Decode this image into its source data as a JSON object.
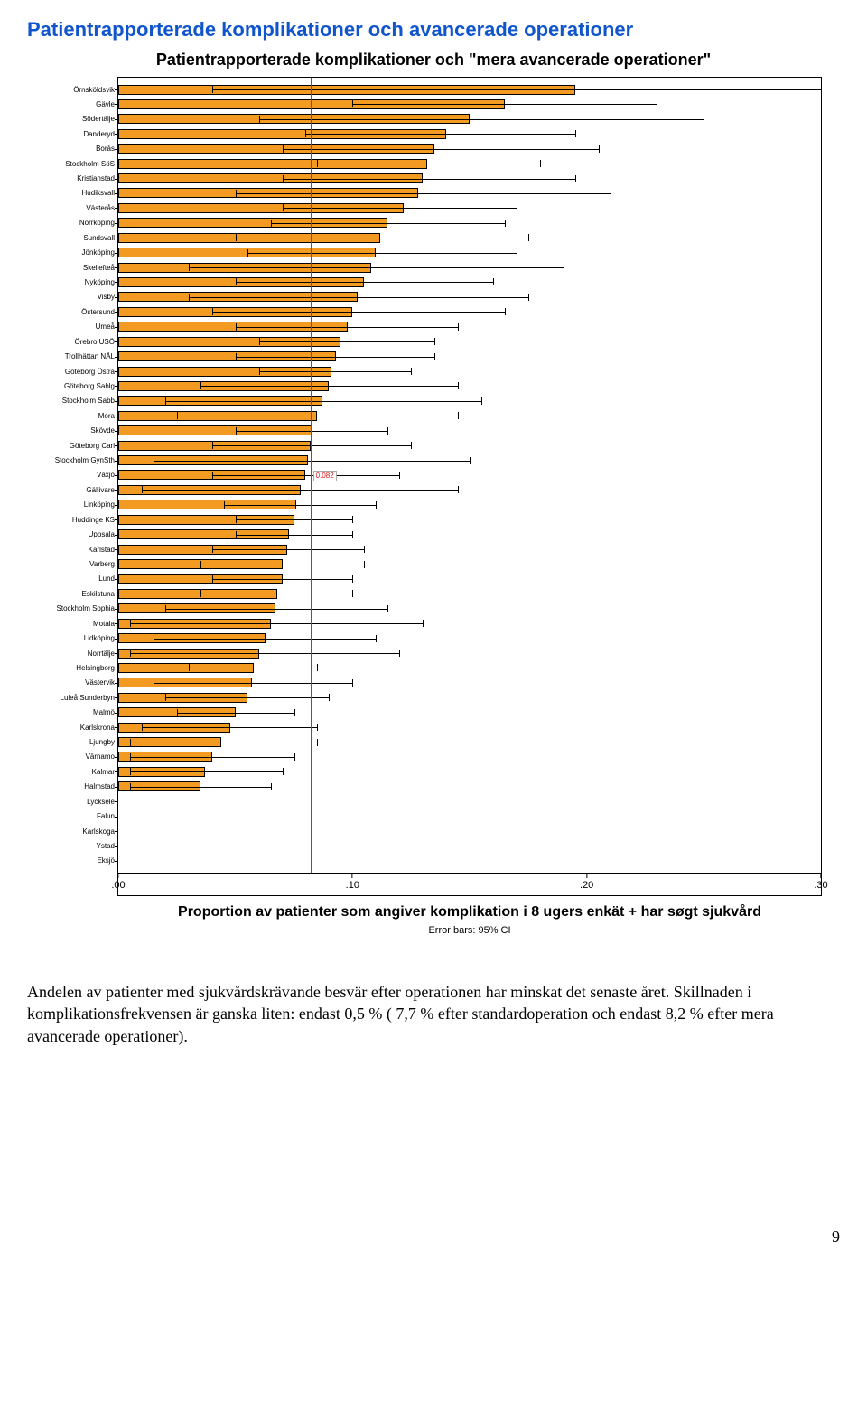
{
  "section_title": "Patientrapporterade komplikationer och avancerade operationer",
  "chart": {
    "type": "bar-horizontal",
    "title": "Patientrapporterade komplikationer och \"mera avancerade operationer\"",
    "x_title": "Proportion av patienter som angiver komplikation i 8 ugers enkät + har søgt sjukvård",
    "error_caption": "Error bars: 95% CI",
    "x_min": 0.0,
    "x_max": 0.3,
    "x_ticks": [
      ".00",
      ".10",
      ".20",
      ".30"
    ],
    "bar_color": "#f29a22",
    "bar_border": "#000000",
    "ref_line": {
      "value": 0.082,
      "label": "0.082",
      "color": "#e02020"
    },
    "background": "#ffffff",
    "rows": [
      {
        "label": "Örnsköldsvik",
        "value": 0.195,
        "lo": 0.04,
        "hi": 0.3
      },
      {
        "label": "Gävle",
        "value": 0.165,
        "lo": 0.1,
        "hi": 0.23
      },
      {
        "label": "Södertälje",
        "value": 0.15,
        "lo": 0.06,
        "hi": 0.25
      },
      {
        "label": "Danderyd",
        "value": 0.14,
        "lo": 0.08,
        "hi": 0.195
      },
      {
        "label": "Borås",
        "value": 0.135,
        "lo": 0.07,
        "hi": 0.205
      },
      {
        "label": "Stockholm SöS",
        "value": 0.132,
        "lo": 0.085,
        "hi": 0.18
      },
      {
        "label": "Kristianstad",
        "value": 0.13,
        "lo": 0.07,
        "hi": 0.195
      },
      {
        "label": "Hudiksvall",
        "value": 0.128,
        "lo": 0.05,
        "hi": 0.21
      },
      {
        "label": "Västerås",
        "value": 0.122,
        "lo": 0.07,
        "hi": 0.17
      },
      {
        "label": "Norrköping",
        "value": 0.115,
        "lo": 0.065,
        "hi": 0.165
      },
      {
        "label": "Sundsvall",
        "value": 0.112,
        "lo": 0.05,
        "hi": 0.175
      },
      {
        "label": "Jönköping",
        "value": 0.11,
        "lo": 0.055,
        "hi": 0.17
      },
      {
        "label": "Skellefteå",
        "value": 0.108,
        "lo": 0.03,
        "hi": 0.19
      },
      {
        "label": "Nyköping",
        "value": 0.105,
        "lo": 0.05,
        "hi": 0.16
      },
      {
        "label": "Visby",
        "value": 0.102,
        "lo": 0.03,
        "hi": 0.175
      },
      {
        "label": "Östersund",
        "value": 0.1,
        "lo": 0.04,
        "hi": 0.165
      },
      {
        "label": "Umeå",
        "value": 0.098,
        "lo": 0.05,
        "hi": 0.145
      },
      {
        "label": "Örebro USÖ",
        "value": 0.095,
        "lo": 0.06,
        "hi": 0.135
      },
      {
        "label": "Trollhättan NÄL",
        "value": 0.093,
        "lo": 0.05,
        "hi": 0.135
      },
      {
        "label": "Göteborg Östra",
        "value": 0.091,
        "lo": 0.06,
        "hi": 0.125
      },
      {
        "label": "Göteborg Sahlg",
        "value": 0.09,
        "lo": 0.035,
        "hi": 0.145
      },
      {
        "label": "Stockholm Sabb",
        "value": 0.087,
        "lo": 0.02,
        "hi": 0.155
      },
      {
        "label": "Mora",
        "value": 0.085,
        "lo": 0.025,
        "hi": 0.145
      },
      {
        "label": "Skövde",
        "value": 0.083,
        "lo": 0.05,
        "hi": 0.115
      },
      {
        "label": "Göteborg Carl",
        "value": 0.082,
        "lo": 0.04,
        "hi": 0.125
      },
      {
        "label": "Stockholm GynSth",
        "value": 0.081,
        "lo": 0.015,
        "hi": 0.15
      },
      {
        "label": "Växjö",
        "value": 0.08,
        "lo": 0.04,
        "hi": 0.12
      },
      {
        "label": "Gällivare",
        "value": 0.078,
        "lo": 0.01,
        "hi": 0.145
      },
      {
        "label": "Linköping",
        "value": 0.076,
        "lo": 0.045,
        "hi": 0.11
      },
      {
        "label": "Huddinge KS",
        "value": 0.075,
        "lo": 0.05,
        "hi": 0.1
      },
      {
        "label": "Uppsala",
        "value": 0.073,
        "lo": 0.05,
        "hi": 0.1
      },
      {
        "label": "Karlstad",
        "value": 0.072,
        "lo": 0.04,
        "hi": 0.105
      },
      {
        "label": "Varberg",
        "value": 0.07,
        "lo": 0.035,
        "hi": 0.105
      },
      {
        "label": "Lund",
        "value": 0.07,
        "lo": 0.04,
        "hi": 0.1
      },
      {
        "label": "Eskilstuna",
        "value": 0.068,
        "lo": 0.035,
        "hi": 0.1
      },
      {
        "label": "Stockholm Sophia",
        "value": 0.067,
        "lo": 0.02,
        "hi": 0.115
      },
      {
        "label": "Motala",
        "value": 0.065,
        "lo": 0.005,
        "hi": 0.13
      },
      {
        "label": "Lidköping",
        "value": 0.063,
        "lo": 0.015,
        "hi": 0.11
      },
      {
        "label": "Norrtälje",
        "value": 0.06,
        "lo": 0.005,
        "hi": 0.12
      },
      {
        "label": "Helsingborg",
        "value": 0.058,
        "lo": 0.03,
        "hi": 0.085
      },
      {
        "label": "Västervik",
        "value": 0.057,
        "lo": 0.015,
        "hi": 0.1
      },
      {
        "label": "Luleå Sunderbyn",
        "value": 0.055,
        "lo": 0.02,
        "hi": 0.09
      },
      {
        "label": "Malmö",
        "value": 0.05,
        "lo": 0.025,
        "hi": 0.075
      },
      {
        "label": "Karlskrona",
        "value": 0.048,
        "lo": 0.01,
        "hi": 0.085
      },
      {
        "label": "Ljungby",
        "value": 0.044,
        "lo": 0.005,
        "hi": 0.085
      },
      {
        "label": "Värnamo",
        "value": 0.04,
        "lo": 0.005,
        "hi": 0.075
      },
      {
        "label": "Kalmar",
        "value": 0.037,
        "lo": 0.005,
        "hi": 0.07
      },
      {
        "label": "Halmstad",
        "value": 0.035,
        "lo": 0.005,
        "hi": 0.065
      },
      {
        "label": "Lycksele",
        "value": 0.0,
        "lo": 0.0,
        "hi": 0.0
      },
      {
        "label": "Falun",
        "value": 0.0,
        "lo": 0.0,
        "hi": 0.0
      },
      {
        "label": "Karlskoga",
        "value": 0.0,
        "lo": 0.0,
        "hi": 0.0
      },
      {
        "label": "Ystad",
        "value": 0.0,
        "lo": 0.0,
        "hi": 0.0
      },
      {
        "label": "Eksjö",
        "value": 0.0,
        "lo": 0.0,
        "hi": 0.0
      }
    ]
  },
  "body_text": "Andelen av patienter med sjukvårdskrävande besvär efter operationen har minskat det senaste året. Skillnaden i komplikationsfrekvensen är ganska liten: endast 0,5 % ( 7,7 % efter standardoperation och endast 8,2 % efter mera avancerade operationer).",
  "page_number": "9"
}
